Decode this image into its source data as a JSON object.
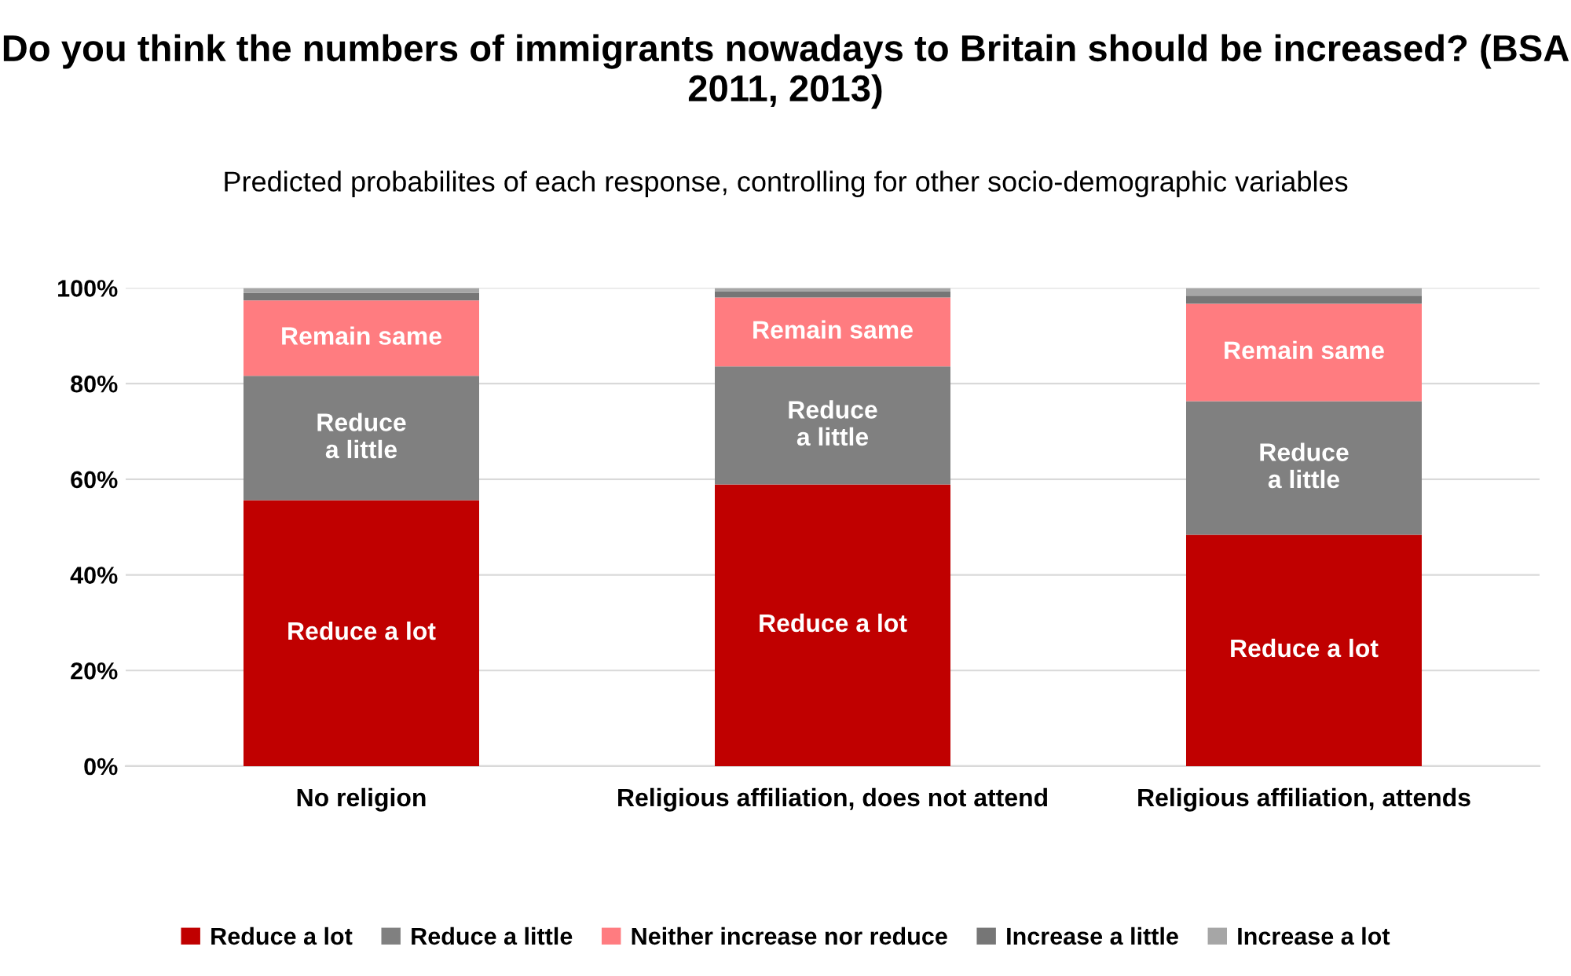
{
  "chart_data": {
    "type": "bar",
    "stacked": true,
    "title": "Do you think the numbers of immigrants nowadays to Britain should be increased? (BSA 2011, 2013)",
    "subtitle": "Predicted probabilites of each response, controlling for other socio-demographic variables",
    "categories": [
      "No religion",
      "Religious affiliation, does not attend",
      "Religious affiliation, attends"
    ],
    "series": [
      {
        "name": "Reduce a lot",
        "color": "#c00000",
        "values": [
          55.6,
          58.9,
          48.4
        ],
        "value_labels": [
          "Reduce a lot",
          "Reduce a lot",
          "Reduce a lot"
        ]
      },
      {
        "name": "Reduce a little",
        "color": "#808080",
        "values": [
          26.0,
          24.7,
          27.9
        ],
        "value_labels": [
          "Reduce\na little",
          "Reduce\na little",
          "Reduce\na little"
        ]
      },
      {
        "name": "Neither increase nor reduce",
        "color": "#ff7c80",
        "values": [
          15.8,
          14.4,
          20.4
        ],
        "value_labels": [
          "Remain same",
          "Remain same",
          "Remain same"
        ]
      },
      {
        "name": "Increase a little",
        "color": "#767676",
        "values": [
          1.6,
          1.3,
          1.7
        ]
      },
      {
        "name": "Increase a lot",
        "color": "#a6a6a6",
        "values": [
          1.0,
          0.7,
          1.6
        ]
      }
    ],
    "ylim": [
      0,
      100
    ],
    "yticks": [
      {
        "value": 0,
        "label": "0%"
      },
      {
        "value": 20,
        "label": "20%"
      },
      {
        "value": 40,
        "label": "40%"
      },
      {
        "value": 60,
        "label": "60%"
      },
      {
        "value": 80,
        "label": "80%"
      },
      {
        "value": 100,
        "label": "100%"
      }
    ],
    "grid": "y",
    "legend": "bottom"
  }
}
